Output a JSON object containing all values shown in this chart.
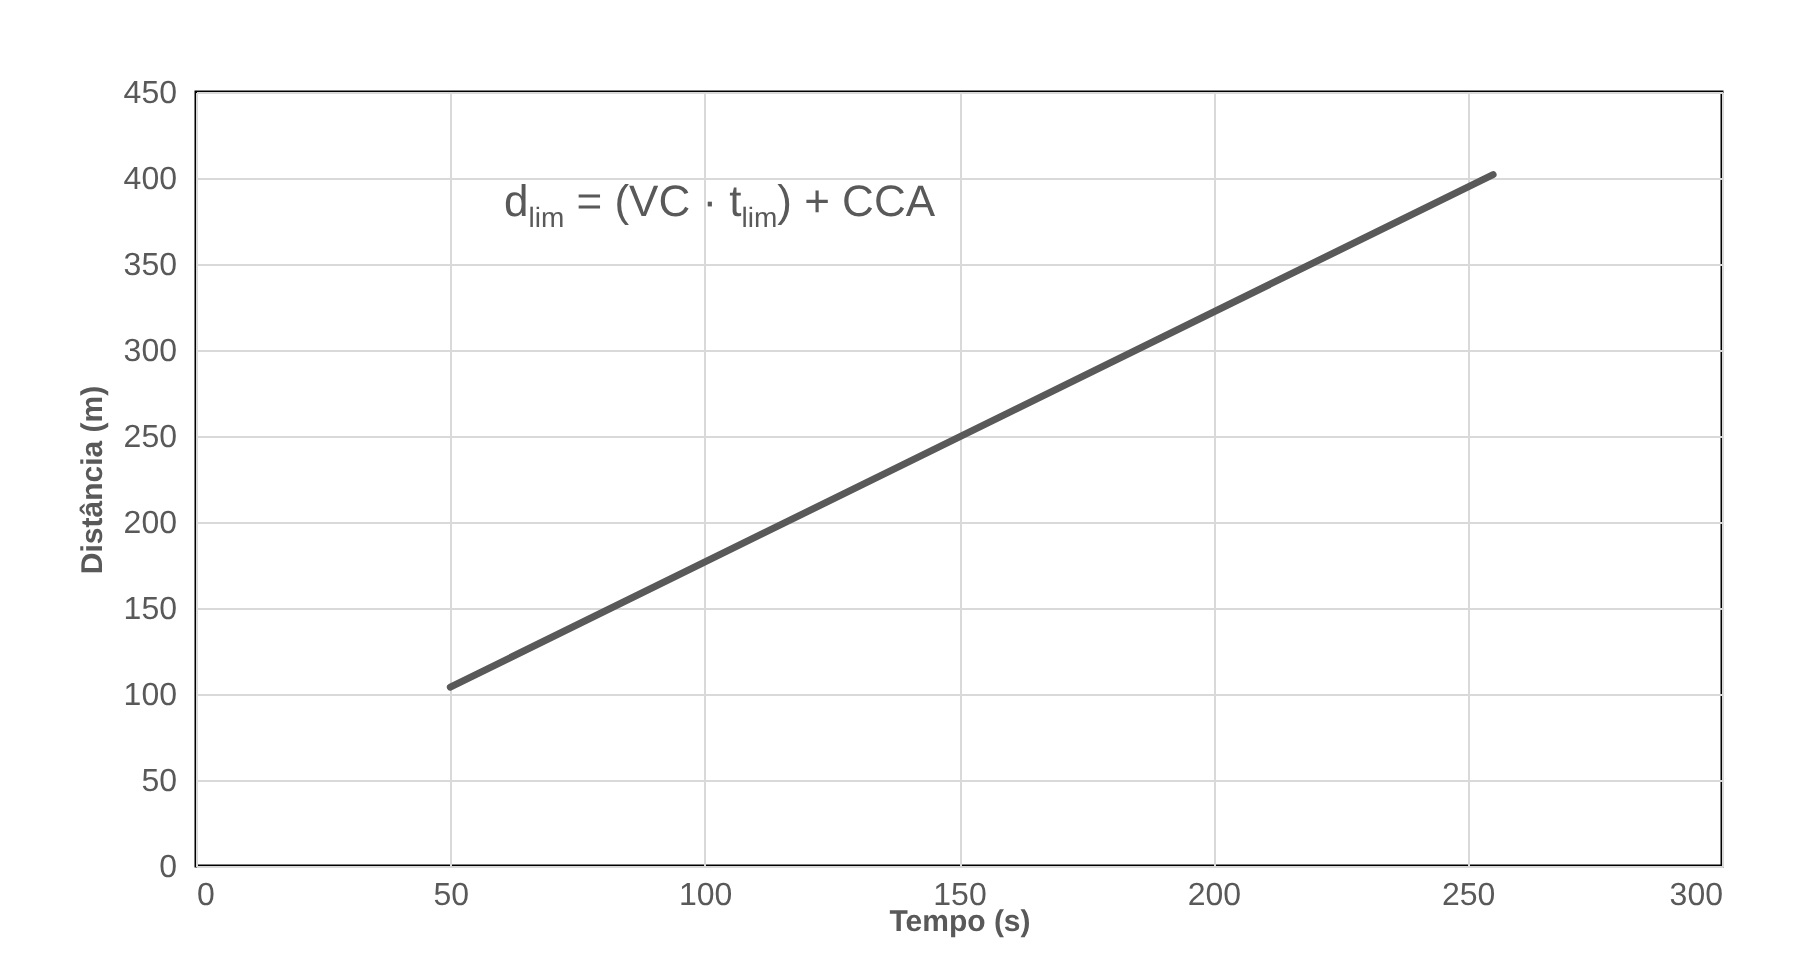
{
  "chart_data": {
    "type": "line",
    "xlabel": "Tempo (s)",
    "ylabel": "Distância (m)",
    "x": [
      50,
      255
    ],
    "series": [
      {
        "color": "#595959",
        "values": [
          104,
          402
        ]
      }
    ],
    "xlim": [
      0,
      300
    ],
    "xticks": [
      0,
      50,
      100,
      150,
      200,
      250,
      300
    ],
    "ylim": [
      0,
      450
    ],
    "yticks": [
      0,
      50,
      100,
      150,
      200,
      250,
      300,
      350,
      400,
      450
    ],
    "grid": true,
    "marker": "none",
    "line_style": "solid",
    "annotations": [
      "d$_{lim}$ = (VC · t$_{lim}$) + CCA"
    ]
  }
}
